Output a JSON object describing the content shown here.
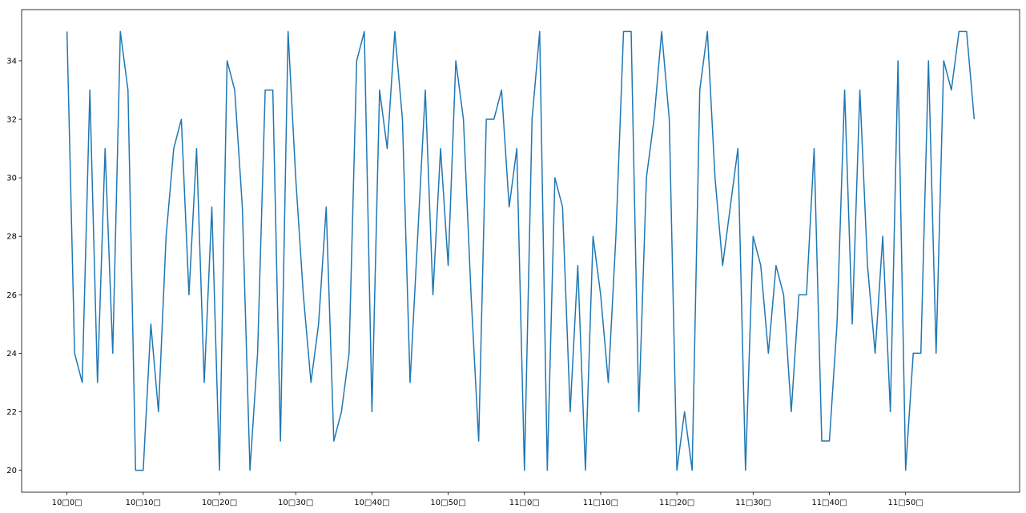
{
  "chart_data": {
    "type": "line",
    "categories": [
      "10□0□",
      null,
      null,
      null,
      null,
      null,
      null,
      null,
      null,
      null,
      "10□10□",
      null,
      null,
      null,
      null,
      null,
      null,
      null,
      null,
      null,
      "10□20□",
      null,
      null,
      null,
      null,
      null,
      null,
      null,
      null,
      null,
      "10□30□",
      null,
      null,
      null,
      null,
      null,
      null,
      null,
      null,
      null,
      "10□40□",
      null,
      null,
      null,
      null,
      null,
      null,
      null,
      null,
      null,
      "10□50□",
      null,
      null,
      null,
      null,
      null,
      null,
      null,
      null,
      null,
      "11□0□",
      null,
      null,
      null,
      null,
      null,
      null,
      null,
      null,
      null,
      "11□10□",
      null,
      null,
      null,
      null,
      null,
      null,
      null,
      null,
      null,
      "11□20□",
      null,
      null,
      null,
      null,
      null,
      null,
      null,
      null,
      null,
      "11□30□",
      null,
      null,
      null,
      null,
      null,
      null,
      null,
      null,
      null,
      "11□40□",
      null,
      null,
      null,
      null,
      null,
      null,
      null,
      null,
      null,
      "11□50□",
      null,
      null,
      null,
      null,
      null,
      null,
      null,
      null,
      null
    ],
    "values": [
      35,
      24,
      23,
      33,
      23,
      31,
      24,
      35,
      33,
      20,
      20,
      25,
      22,
      28,
      31,
      32,
      26,
      31,
      23,
      29,
      20,
      34,
      33,
      29,
      20,
      24,
      33,
      33,
      21,
      35,
      30,
      26,
      23,
      25,
      29,
      21,
      22,
      24,
      34,
      35,
      22,
      33,
      31,
      35,
      32,
      23,
      28,
      33,
      26,
      31,
      27,
      34,
      32,
      26,
      21,
      32,
      32,
      33,
      29,
      31,
      20,
      32,
      35,
      20,
      30,
      29,
      22,
      27,
      20,
      28,
      26,
      23,
      28,
      35,
      35,
      22,
      30,
      32,
      35,
      32,
      20,
      22,
      20,
      33,
      35,
      30,
      27,
      29,
      31,
      20,
      28,
      27,
      24,
      27,
      26,
      22,
      26,
      26,
      31,
      21,
      21,
      25,
      33,
      25,
      33,
      27,
      24,
      28,
      22,
      34,
      20,
      24,
      24,
      34,
      24,
      34,
      33,
      35,
      35,
      32
    ],
    "color": "#1f77b4",
    "ylim": [
      19.25,
      35.75
    ],
    "yticks": [
      20,
      22,
      24,
      26,
      28,
      30,
      32,
      34
    ]
  }
}
